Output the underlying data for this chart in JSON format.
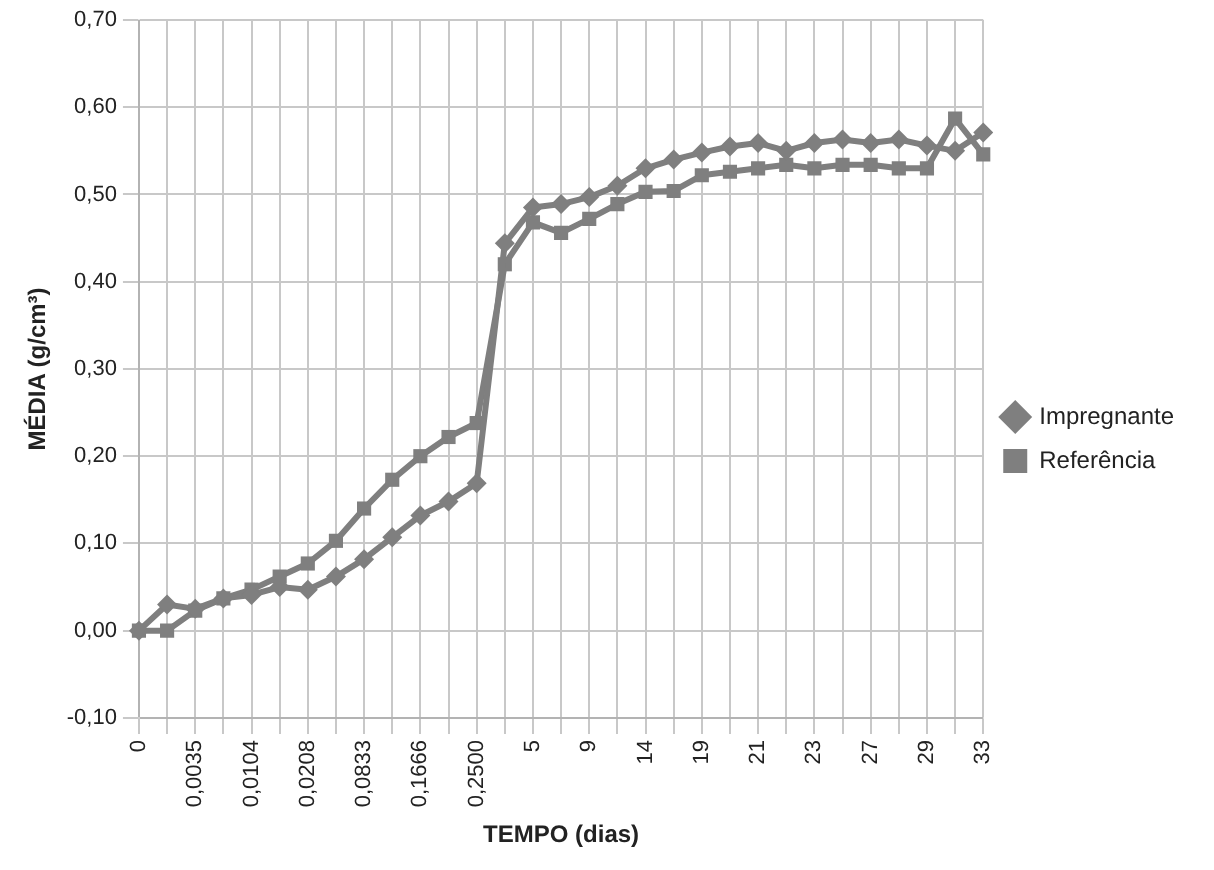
{
  "chart_data": {
    "type": "line",
    "xlabel": "TEMPO (dias)",
    "ylabel": "MÉDIA (g/cm³)",
    "categories": [
      "0",
      null,
      "0,0035",
      null,
      "0,0104",
      null,
      "0,0208",
      null,
      "0,0833",
      null,
      "0,1666",
      null,
      "0,2500",
      null,
      "5",
      null,
      "9",
      null,
      "14",
      null,
      "19",
      null,
      "21",
      null,
      "23",
      null,
      "27",
      null,
      "29",
      null,
      "33"
    ],
    "series": [
      {
        "name": "Impregnante",
        "color": "#7f7f7f",
        "marker": "diamond",
        "values": [
          0.0,
          0.03,
          0.025,
          0.037,
          0.041,
          0.05,
          0.047,
          0.062,
          0.082,
          0.107,
          0.132,
          0.148,
          0.169,
          0.444,
          0.485,
          0.489,
          0.497,
          0.51,
          0.53,
          0.54,
          0.548,
          0.555,
          0.559,
          0.55,
          0.559,
          0.563,
          0.559,
          0.563,
          0.556,
          0.55,
          0.571
        ]
      },
      {
        "name": "Referência",
        "color": "#7f7f7f",
        "marker": "square",
        "values": [
          0.0,
          0.0,
          0.023,
          0.037,
          0.047,
          0.062,
          0.077,
          0.103,
          0.14,
          0.173,
          0.2,
          0.222,
          0.238,
          0.42,
          0.468,
          0.456,
          0.472,
          0.489,
          0.503,
          0.504,
          0.522,
          0.526,
          0.53,
          0.534,
          0.53,
          0.534,
          0.534,
          0.53,
          0.53,
          0.587,
          0.546
        ]
      }
    ],
    "ylim": [
      -0.1,
      0.7
    ],
    "yticks": [
      {
        "value": -0.1,
        "label": "-0,10"
      },
      {
        "value": 0,
        "label": "0,00"
      },
      {
        "value": 0.1,
        "label": "0,10"
      },
      {
        "value": 0.2,
        "label": "0,20"
      },
      {
        "value": 0.3,
        "label": "0,30"
      },
      {
        "value": 0.4,
        "label": "0,40"
      },
      {
        "value": 0.5,
        "label": "0,50"
      },
      {
        "value": 0.6,
        "label": "0,60"
      },
      {
        "value": 0.7,
        "label": "0,70"
      }
    ],
    "grid": true,
    "legend": "right",
    "line_style": "solid"
  }
}
